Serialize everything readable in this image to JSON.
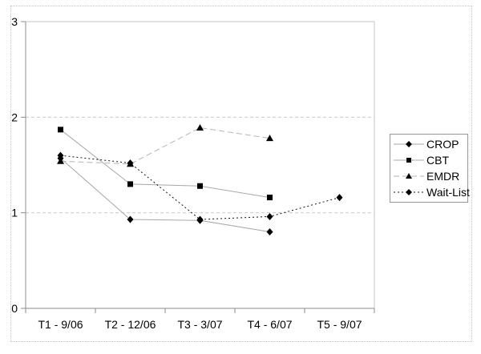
{
  "chart_data": {
    "type": "line",
    "title": "",
    "xlabel": "",
    "ylabel": "",
    "categories": [
      "T1 - 9/06",
      "T2 - 12/06",
      "T3 - 3/07",
      "T4 - 6/07",
      "T5 - 9/07"
    ],
    "y_ticks": [
      "0",
      "1",
      "2",
      "3"
    ],
    "ylim": [
      0,
      3
    ],
    "gridlines": {
      "y_values": [
        1,
        2
      ],
      "style": "dashed"
    },
    "legend_position": "right",
    "series": [
      {
        "name": "CROP",
        "marker": "diamond",
        "line_style": "solid",
        "line_color": "#a8a8a8",
        "values": [
          1.57,
          0.93,
          0.92,
          0.8,
          null
        ]
      },
      {
        "name": "CBT",
        "marker": "square",
        "line_style": "solid",
        "line_color": "#a8a8a8",
        "values": [
          1.87,
          1.3,
          1.28,
          1.16,
          null
        ]
      },
      {
        "name": "EMDR",
        "marker": "triangle",
        "line_style": "dashed",
        "line_color": "#b5b5b5",
        "values": [
          1.54,
          1.51,
          1.89,
          1.78,
          null
        ]
      },
      {
        "name": "Wait-List",
        "marker": "diamond",
        "line_style": "dotted",
        "line_color": "#141414",
        "values": [
          1.6,
          1.52,
          0.93,
          0.96,
          1.16
        ]
      }
    ],
    "marker_color": "#000000"
  },
  "colors": {
    "background": "#ffffff",
    "plot_border": "#c6c6c6",
    "axis": "#8c8c8c",
    "gridline": "#c9c9c9",
    "outer_border": "#c4c4c4",
    "legend_border": "#969696"
  }
}
